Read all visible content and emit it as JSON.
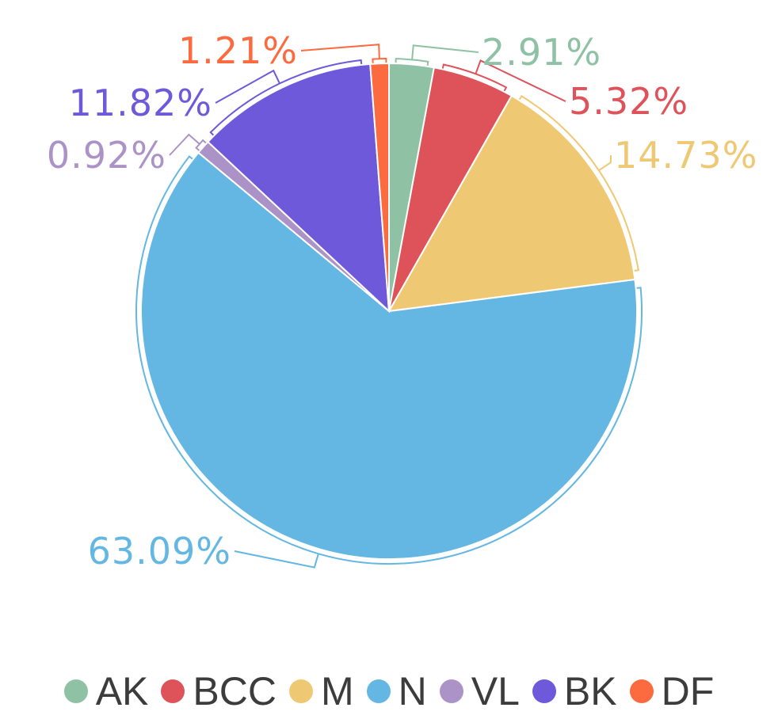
{
  "chart_data": {
    "type": "pie",
    "title": "",
    "start": "top",
    "direction": "clockwise",
    "legend_position": "bottom",
    "series": [
      {
        "name": "AK",
        "value": 2.91,
        "label": "2.91%",
        "color": "#8fc1a5"
      },
      {
        "name": "BCC",
        "value": 5.32,
        "label": "5.32%",
        "color": "#dd5359"
      },
      {
        "name": "M",
        "value": 14.73,
        "label": "14.73%",
        "color": "#efc873"
      },
      {
        "name": "N",
        "value": 63.09,
        "label": "63.09%",
        "color": "#63b7e2"
      },
      {
        "name": "VL",
        "value": 0.92,
        "label": "0.92%",
        "color": "#ab93c7"
      },
      {
        "name": "BK",
        "value": 11.82,
        "label": "11.82%",
        "color": "#6d59da"
      },
      {
        "name": "DF",
        "value": 1.21,
        "label": "1.21%",
        "color": "#fb6b3f"
      }
    ]
  }
}
